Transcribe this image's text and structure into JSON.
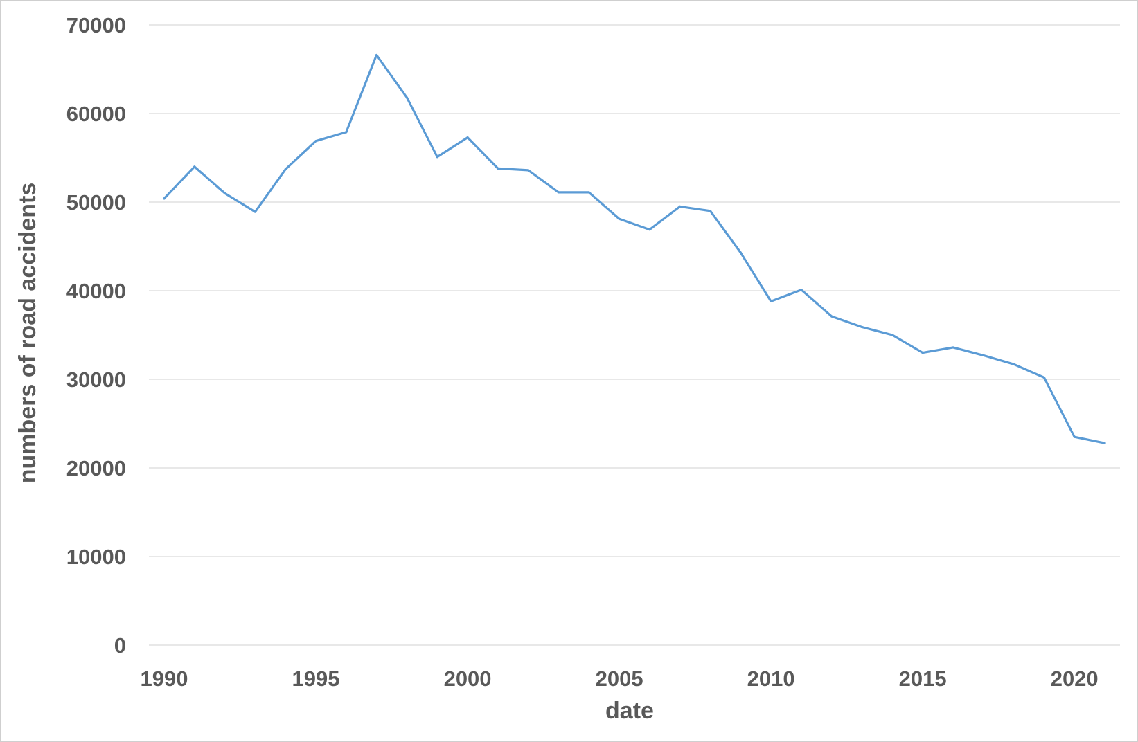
{
  "chart_data": {
    "type": "line",
    "title": "",
    "xlabel": "date",
    "ylabel": "numbers of road accidents",
    "xlim": [
      1990,
      2021
    ],
    "ylim": [
      0,
      70000
    ],
    "x_ticks": [
      1990,
      1995,
      2000,
      2005,
      2010,
      2015,
      2020
    ],
    "y_ticks": [
      0,
      10000,
      20000,
      30000,
      40000,
      50000,
      60000,
      70000
    ],
    "grid": true,
    "legend": "none",
    "line_color": "#5b9bd5",
    "series": [
      {
        "x": [
          1990,
          1991,
          1992,
          1993,
          1994,
          1995,
          1996,
          1997,
          1998,
          1999,
          2000,
          2001,
          2002,
          2003,
          2004,
          2005,
          2006,
          2007,
          2008,
          2009,
          2010,
          2011,
          2012,
          2013,
          2014,
          2015,
          2016,
          2017,
          2018,
          2019,
          2020,
          2021
        ],
        "values": [
          50400,
          54000,
          51000,
          48900,
          53700,
          56900,
          57900,
          66600,
          61800,
          55100,
          57300,
          53800,
          53600,
          51100,
          51100,
          48100,
          46900,
          49500,
          49000,
          44300,
          38800,
          40100,
          37100,
          35900,
          35000,
          33000,
          33600,
          32700,
          31700,
          30200,
          23500,
          22800
        ]
      }
    ]
  }
}
